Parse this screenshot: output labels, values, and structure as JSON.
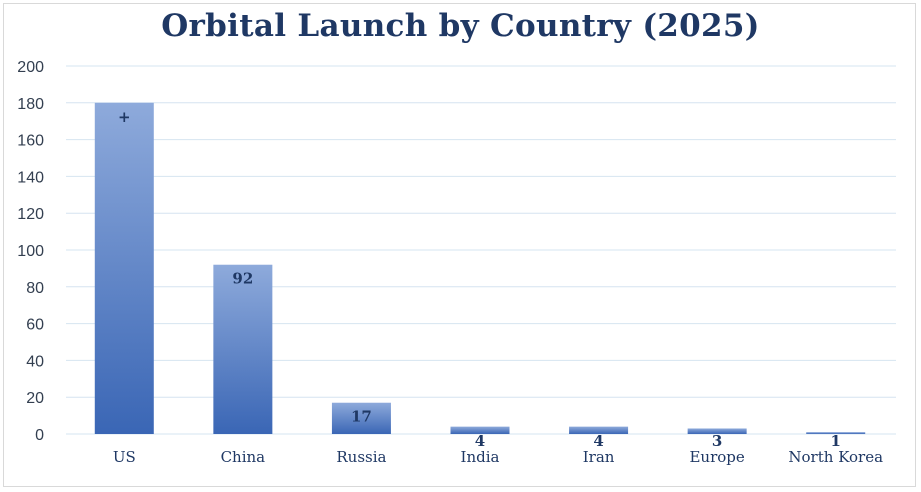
{
  "chart_data": {
    "type": "bar",
    "title": "Orbital Launch by Country (2025)",
    "xlabel": "",
    "ylabel": "",
    "categories": [
      "US",
      "China",
      "Russia",
      "India",
      "Iran",
      "Europe",
      "North Korea"
    ],
    "values": [
      180,
      92,
      17,
      4,
      4,
      3,
      1
    ],
    "data_labels": [
      "+",
      "92",
      "17",
      "4",
      "4",
      "3",
      "1"
    ],
    "ylim": [
      0,
      200
    ],
    "yticks": [
      0,
      20,
      40,
      60,
      80,
      100,
      120,
      140,
      160,
      180,
      200
    ],
    "grid": true,
    "legend": "none",
    "colors": {
      "bar_top": "#8eaadb",
      "bar_bottom": "#3a66b5",
      "grid": "#d6e4f0",
      "text": "#1f3864"
    }
  }
}
